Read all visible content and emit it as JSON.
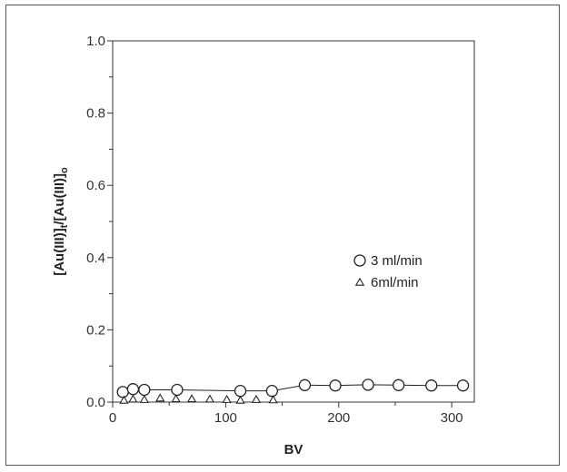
{
  "chart_data": {
    "type": "scatter",
    "xlabel": "BV",
    "ylabel": "[Au(III)]t/[Au(III)]o",
    "ylabel_parts": {
      "main1": "[Au(III)]",
      "sub1": "t",
      "main2": "/[Au(III)]",
      "sub2": "o"
    },
    "xlim": [
      0,
      320
    ],
    "ylim": [
      0,
      1.0
    ],
    "x_ticks": [
      0,
      100,
      200,
      300
    ],
    "x_tick_labels": [
      "0",
      "100",
      "200",
      "300"
    ],
    "y_ticks": [
      0.0,
      0.2,
      0.4,
      0.6,
      0.8,
      1.0
    ],
    "y_tick_labels": [
      "0.0",
      "0.2",
      "0.4",
      "0.6",
      "0.8",
      "1.0"
    ],
    "grid": false,
    "legend_position": "center-right",
    "series": [
      {
        "name": "3 ml/min",
        "marker": "circle",
        "connected": true,
        "color": "#222222",
        "x": [
          9,
          18,
          28,
          57,
          113,
          141,
          170,
          197,
          226,
          253,
          282,
          310
        ],
        "y": [
          0.028,
          0.036,
          0.034,
          0.034,
          0.031,
          0.031,
          0.047,
          0.046,
          0.048,
          0.047,
          0.046,
          0.046
        ]
      },
      {
        "name": "6ml/min",
        "marker": "triangle",
        "connected": false,
        "color": "#222222",
        "x": [
          10,
          18,
          28,
          42,
          56,
          70,
          86,
          101,
          113,
          127,
          142
        ],
        "y": [
          0.005,
          0.008,
          0.007,
          0.011,
          0.009,
          0.009,
          0.008,
          0.007,
          0.005,
          0.007,
          0.006
        ]
      }
    ]
  }
}
